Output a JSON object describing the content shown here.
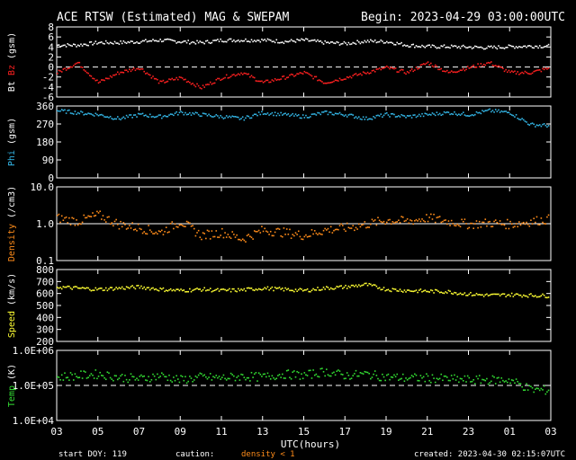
{
  "header": {
    "title": "ACE RTSW (Estimated) MAG & SWEPAM",
    "begin": "Begin: 2023-04-29 03:00:00UTC"
  },
  "footer": {
    "start_doy": "start DOY: 119",
    "caution": "caution:",
    "density_note": "density < 1",
    "created": "created: 2023-04-30 02:15:07UTC",
    "xlabel": "UTC(hours)"
  },
  "colors": {
    "bt": "#ffffff",
    "bz": "#ff2020",
    "phi": "#33b5e5",
    "density": "#ff8c1a",
    "speed": "#ffff33",
    "temp": "#33dd33",
    "axis": "#ffffff"
  },
  "chart_data": [
    {
      "type": "scatter",
      "ylabel": [
        "Bt",
        "Bz",
        "(gsm)"
      ],
      "ylim": [
        -6,
        8
      ],
      "yticks": [
        "-6",
        "-4",
        "-2",
        "0",
        "2",
        "4",
        "6",
        "8"
      ],
      "ytick_values": [
        -6,
        -4,
        -2,
        0,
        2,
        4,
        6,
        8
      ],
      "reference_line": 0,
      "series": [
        {
          "name": "Bt",
          "color": "bt",
          "x": [
            0,
            1,
            2,
            3,
            4,
            5,
            6,
            7,
            8,
            9,
            10,
            11,
            12,
            13,
            14,
            15,
            16,
            17,
            18,
            19,
            20,
            21,
            22,
            23,
            24,
            24.5
          ],
          "y": [
            4.5,
            4.5,
            5,
            5,
            5.2,
            5.5,
            5.2,
            5,
            5.5,
            5.5,
            5.5,
            5.2,
            5.5,
            5,
            4.8,
            5.3,
            5.2,
            4.5,
            4.2,
            4.2,
            4.1,
            4,
            4.2,
            4.3,
            4.3,
            4.4
          ]
        },
        {
          "name": "Bz",
          "color": "bz",
          "x": [
            0,
            1,
            2,
            3,
            4,
            5,
            6,
            7,
            8,
            9,
            10,
            11,
            12,
            13,
            14,
            15,
            16,
            17,
            18,
            19,
            20,
            21,
            22,
            23,
            24,
            24.5
          ],
          "y": [
            -1,
            1,
            -3,
            -1,
            0,
            -3,
            -2,
            -4,
            -2,
            -1,
            -3,
            -2,
            -1,
            -3,
            -2,
            -1,
            0,
            -1,
            1,
            -1,
            0,
            1,
            -1,
            -1,
            0,
            -0.5
          ]
        }
      ]
    },
    {
      "type": "scatter",
      "ylabel": [
        "Phi",
        "(gsm)"
      ],
      "ylim": [
        0,
        360
      ],
      "yticks": [
        "0",
        "90",
        "180",
        "270",
        "360"
      ],
      "ytick_values": [
        0,
        90,
        180,
        270,
        360
      ],
      "series": [
        {
          "name": "Phi",
          "color": "phi",
          "x": [
            0,
            1,
            2,
            3,
            4,
            5,
            6,
            7,
            8,
            9,
            10,
            11,
            12,
            13,
            14,
            15,
            16,
            17,
            18,
            19,
            20,
            21,
            22,
            23,
            24,
            24.5
          ],
          "y": [
            340,
            330,
            320,
            300,
            320,
            310,
            330,
            320,
            310,
            300,
            330,
            320,
            310,
            330,
            320,
            300,
            320,
            310,
            320,
            330,
            320,
            340,
            330,
            270,
            265,
            270
          ]
        }
      ]
    },
    {
      "type": "scatter",
      "ylabel": [
        "Density",
        "(/cm3)"
      ],
      "yscale": "log",
      "ylim": [
        0.1,
        10
      ],
      "yticks": [
        "0.1",
        "1.0",
        "10.0"
      ],
      "ytick_values": [
        0.1,
        1,
        10
      ],
      "reference_line": 1,
      "series": [
        {
          "name": "Density",
          "color": "density",
          "x": [
            0,
            1,
            2,
            3,
            4,
            5,
            6,
            7,
            8,
            9,
            10,
            11,
            12,
            13,
            14,
            15,
            16,
            17,
            18,
            19,
            20,
            21,
            22,
            23,
            24,
            24.5
          ],
          "y": [
            1.5,
            1.2,
            1.8,
            1,
            0.8,
            0.6,
            1.2,
            0.5,
            0.6,
            0.4,
            0.7,
            0.6,
            0.5,
            0.7,
            0.8,
            1,
            1.3,
            1.2,
            1.5,
            1.2,
            1,
            1.1,
            1,
            1.2,
            1.4,
            1.3
          ]
        }
      ]
    },
    {
      "type": "scatter",
      "ylabel": [
        "Speed",
        "(km/s)"
      ],
      "ylim": [
        200,
        800
      ],
      "yticks": [
        "200",
        "300",
        "400",
        "500",
        "600",
        "700",
        "800"
      ],
      "ytick_values": [
        200,
        300,
        400,
        500,
        600,
        700,
        800
      ],
      "series": [
        {
          "name": "Speed",
          "color": "speed",
          "x": [
            0,
            1,
            2,
            3,
            4,
            5,
            6,
            7,
            8,
            9,
            10,
            11,
            12,
            13,
            14,
            15,
            16,
            17,
            18,
            19,
            20,
            21,
            22,
            23,
            24,
            24.5
          ],
          "y": [
            660,
            650,
            640,
            650,
            660,
            640,
            630,
            640,
            630,
            635,
            650,
            640,
            630,
            650,
            660,
            680,
            640,
            630,
            625,
            620,
            600,
            590,
            595,
            590,
            585,
            590
          ]
        }
      ]
    },
    {
      "type": "scatter",
      "ylabel": [
        "Temp",
        "(K)"
      ],
      "yscale": "log",
      "ylim": [
        10000,
        1000000
      ],
      "yticks": [
        "1.0E+04",
        "1.0E+05",
        "1.0E+06"
      ],
      "ytick_values": [
        10000,
        100000,
        1000000
      ],
      "reference_line": 100000,
      "series": [
        {
          "name": "Temp",
          "color": "temp",
          "x": [
            0,
            1,
            2,
            3,
            4,
            5,
            6,
            7,
            8,
            9,
            10,
            11,
            12,
            13,
            14,
            15,
            16,
            17,
            18,
            19,
            20,
            21,
            22,
            23,
            24,
            24.5
          ],
          "y": [
            180000,
            200000,
            220000,
            180000,
            160000,
            200000,
            150000,
            180000,
            170000,
            190000,
            180000,
            220000,
            200000,
            260000,
            200000,
            220000,
            180000,
            170000,
            170000,
            160000,
            150000,
            150000,
            150000,
            80000,
            75000,
            80000
          ]
        }
      ]
    }
  ],
  "x_axis": {
    "xlim": [
      0,
      24
    ],
    "ticks": [
      "03",
      "05",
      "07",
      "09",
      "11",
      "13",
      "15",
      "17",
      "19",
      "21",
      "23",
      "01",
      "03"
    ],
    "tick_hours": [
      0,
      2,
      4,
      6,
      8,
      10,
      12,
      14,
      16,
      18,
      20,
      22,
      24
    ]
  }
}
